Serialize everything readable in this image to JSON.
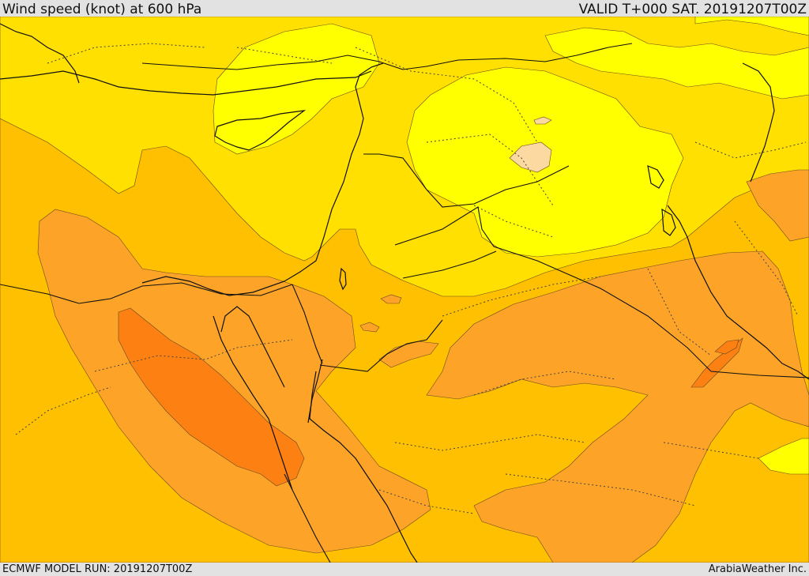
{
  "header": {
    "title": "Wind speed (knot) at 600 hPa",
    "valid": "VALID T+000 SAT. 20191207T00Z"
  },
  "footer": {
    "model_run": "ECMWF MODEL RUN: 20191207T00Z",
    "credit": "ArabiaWeather Inc."
  },
  "map": {
    "parameter": "wind speed",
    "level_hpa": 600,
    "units": "knot",
    "palette": {
      "pale_peach": "#fcd9a0",
      "bright_yellow": "#ffff00",
      "gold_yellow": "#ffe000",
      "amber": "#fec000",
      "light_orange": "#fda428",
      "orange": "#fd8112"
    },
    "layers": [
      "wind-speed-shading",
      "coastlines",
      "country-borders",
      "province-borders"
    ]
  }
}
